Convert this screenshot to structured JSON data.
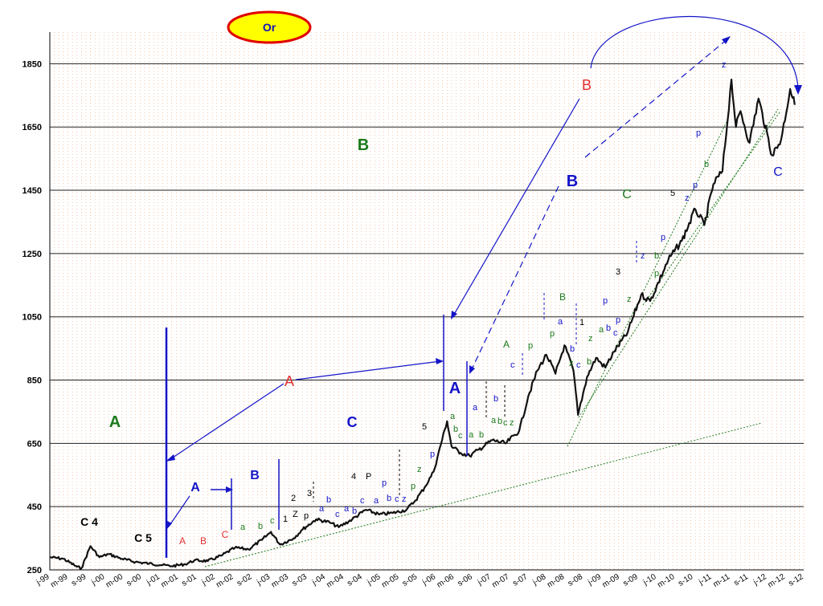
{
  "chart_data": {
    "type": "line",
    "title": "Or",
    "xlabel": "",
    "ylabel": "",
    "ylim": [
      250,
      1950
    ],
    "yticks": [
      250,
      450,
      650,
      850,
      1050,
      1250,
      1450,
      1650,
      1850
    ],
    "xlim": [
      "1999-01",
      "2012-12"
    ],
    "x_tick_labels": [
      "j-99",
      "m-99",
      "s-99",
      "j-00",
      "m-00",
      "s-00",
      "j-01",
      "m-01",
      "s-01",
      "j-02",
      "m-02",
      "s-02",
      "j-03",
      "m-03",
      "s-03",
      "j-04",
      "m-04",
      "s-04",
      "j-05",
      "m-05",
      "s-05",
      "j-06",
      "m-06",
      "s-06",
      "j-07",
      "m-07",
      "s-07",
      "j-08",
      "m-08",
      "s-08",
      "j-09",
      "m-09",
      "s-09",
      "j-10",
      "m-10",
      "s-10",
      "j-11",
      "m-11",
      "s-11",
      "j-12",
      "m-12",
      "s-12"
    ],
    "grid": {
      "vertical": "dotted",
      "horizontal": "solid"
    },
    "series": [
      {
        "color": "#111111",
        "x": [
          "1999-01",
          "1999-04",
          "1999-07",
          "1999-08",
          "1999-10",
          "1999-12",
          "2000-02",
          "2000-05",
          "2000-08",
          "2000-11",
          "2001-02",
          "2001-04",
          "2001-07",
          "2001-09",
          "2001-12",
          "2002-03",
          "2002-06",
          "2002-09",
          "2002-12",
          "2003-02",
          "2003-04",
          "2003-07",
          "2003-09",
          "2003-12",
          "2004-03",
          "2004-05",
          "2004-08",
          "2004-11",
          "2005-02",
          "2005-05",
          "2005-08",
          "2005-10",
          "2005-12",
          "2006-02",
          "2006-05",
          "2006-06",
          "2006-08",
          "2006-10",
          "2006-12",
          "2007-03",
          "2007-06",
          "2007-09",
          "2007-11",
          "2008-01",
          "2008-03",
          "2008-05",
          "2008-07",
          "2008-09",
          "2008-10",
          "2008-12",
          "2009-02",
          "2009-04",
          "2009-06",
          "2009-09",
          "2009-12",
          "2010-02",
          "2010-06",
          "2010-09",
          "2010-12",
          "2011-02",
          "2011-04",
          "2011-06",
          "2011-08",
          "2011-09",
          "2011-10",
          "2011-12",
          "2012-02",
          "2012-05",
          "2012-07",
          "2012-09",
          "2012-10"
        ],
        "values": [
          290,
          285,
          260,
          255,
          325,
          290,
          300,
          285,
          275,
          270,
          265,
          262,
          268,
          280,
          278,
          295,
          320,
          315,
          345,
          370,
          330,
          350,
          378,
          410,
          400,
          385,
          410,
          440,
          425,
          430,
          440,
          470,
          510,
          560,
          720,
          640,
          620,
          610,
          630,
          660,
          650,
          690,
          800,
          880,
          930,
          870,
          960,
          880,
          740,
          860,
          920,
          890,
          940,
          1000,
          1120,
          1100,
          1230,
          1290,
          1390,
          1340,
          1470,
          1510,
          1800,
          1650,
          1700,
          1600,
          1740,
          1560,
          1610,
          1770,
          1720
        ]
      }
    ],
    "annotations": {
      "wave_labels": [
        {
          "text": "A",
          "color": "#1b7a1b"
        },
        {
          "text": "B",
          "color": "#1b7a1b"
        },
        {
          "text": "C",
          "color": "#1414c8"
        },
        {
          "text": "A",
          "color": "#1414c8"
        },
        {
          "text": "B",
          "color": "#1414c8"
        },
        {
          "text": "A",
          "color": "#1414c8"
        },
        {
          "text": "B",
          "color": "#1414c8"
        },
        {
          "text": "A",
          "color": "#e03030"
        },
        {
          "text": "B",
          "color": "#e03030"
        },
        {
          "text": "C",
          "color": "#1b7a1b"
        },
        {
          "text": "C",
          "color": "#1414c8"
        },
        {
          "text": "A",
          "color": "#e03030"
        },
        {
          "text": "B",
          "color": "#e03030"
        },
        {
          "text": "C",
          "color": "#e03030"
        },
        {
          "text": "A",
          "color": "#1b7a1b"
        },
        {
          "text": "B",
          "color": "#1b7a1b"
        }
      ],
      "small_labels": [
        {
          "text": "C 4",
          "color": "#000000"
        },
        {
          "text": "C 5",
          "color": "#000000"
        },
        {
          "text": "a",
          "color": "#1b7a1b"
        },
        {
          "text": "b",
          "color": "#1b7a1b"
        },
        {
          "text": "c",
          "color": "#1b7a1b"
        },
        {
          "text": "1",
          "color": "#000000"
        },
        {
          "text": "2",
          "color": "#000000"
        },
        {
          "text": "3",
          "color": "#000000"
        },
        {
          "text": "Z",
          "color": "#000000"
        },
        {
          "text": "p",
          "color": "#000000"
        },
        {
          "text": "a",
          "color": "#1414c8"
        },
        {
          "text": "b",
          "color": "#1414c8"
        },
        {
          "text": "c",
          "color": "#1414c8"
        },
        {
          "text": "a",
          "color": "#1414c8"
        },
        {
          "text": "b",
          "color": "#1414c8"
        },
        {
          "text": "4",
          "color": "#000000"
        },
        {
          "text": "P",
          "color": "#000000"
        },
        {
          "text": "c",
          "color": "#1414c8"
        },
        {
          "text": "a",
          "color": "#1414c8"
        },
        {
          "text": "p",
          "color": "#1414c8"
        },
        {
          "text": "b",
          "color": "#1414c8"
        },
        {
          "text": "c",
          "color": "#1414c8"
        },
        {
          "text": "z",
          "color": "#1414c8"
        },
        {
          "text": "p",
          "color": "#1b7a1b"
        },
        {
          "text": "z",
          "color": "#1b7a1b"
        },
        {
          "text": "p",
          "color": "#1414c8"
        },
        {
          "text": "5",
          "color": "#000000"
        },
        {
          "text": "a",
          "color": "#1b7a1b"
        },
        {
          "text": "b",
          "color": "#1b7a1b"
        },
        {
          "text": "c",
          "color": "#1b7a1b"
        },
        {
          "text": "a",
          "color": "#1b7a1b"
        },
        {
          "text": "b",
          "color": "#1b7a1b"
        },
        {
          "text": "a",
          "color": "#1414c8"
        },
        {
          "text": "b",
          "color": "#1414c8"
        },
        {
          "text": "a",
          "color": "#1b7a1b"
        },
        {
          "text": "b",
          "color": "#1b7a1b"
        },
        {
          "text": "c",
          "color": "#1b7a1b"
        },
        {
          "text": "z",
          "color": "#1b7a1b"
        },
        {
          "text": "c",
          "color": "#1414c8"
        },
        {
          "text": "p",
          "color": "#1b7a1b"
        },
        {
          "text": "a",
          "color": "#1414c8"
        },
        {
          "text": "p",
          "color": "#1b7a1b"
        },
        {
          "text": "b",
          "color": "#1414c8"
        },
        {
          "text": "c",
          "color": "#1414c8"
        },
        {
          "text": "z",
          "color": "#1b7a1b"
        },
        {
          "text": "b",
          "color": "#1b7a1b"
        },
        {
          "text": "1",
          "color": "#000000"
        },
        {
          "text": "z",
          "color": "#1b7a1b"
        },
        {
          "text": "a",
          "color": "#1b7a1b"
        },
        {
          "text": "b",
          "color": "#1414c8"
        },
        {
          "text": "c",
          "color": "#1414c8"
        },
        {
          "text": "p",
          "color": "#1414c8"
        },
        {
          "text": "p",
          "color": "#1414c8"
        },
        {
          "text": "3",
          "color": "#000000"
        },
        {
          "text": "z",
          "color": "#1414c8"
        },
        {
          "text": "z",
          "color": "#1b7a1b"
        },
        {
          "text": "b",
          "color": "#1b7a1b"
        },
        {
          "text": "p",
          "color": "#1414c8"
        },
        {
          "text": "p",
          "color": "#1b7a1b"
        },
        {
          "text": "5",
          "color": "#000000"
        },
        {
          "text": "z",
          "color": "#1414c8"
        },
        {
          "text": "p",
          "color": "#1414c8"
        },
        {
          "text": "b",
          "color": "#1b7a1b"
        },
        {
          "text": "p",
          "color": "#1414c8"
        },
        {
          "text": "z",
          "color": "#1414c8"
        }
      ]
    },
    "colors": {
      "line": "#111111",
      "blue_annotation": "#1414c8",
      "green_annotation": "#1b7a1b",
      "red_annotation": "#e03030",
      "title_ellipse_fill": "#ffff00",
      "title_ellipse_stroke": "#e00000",
      "vertical_grid": "#e8a070"
    }
  }
}
